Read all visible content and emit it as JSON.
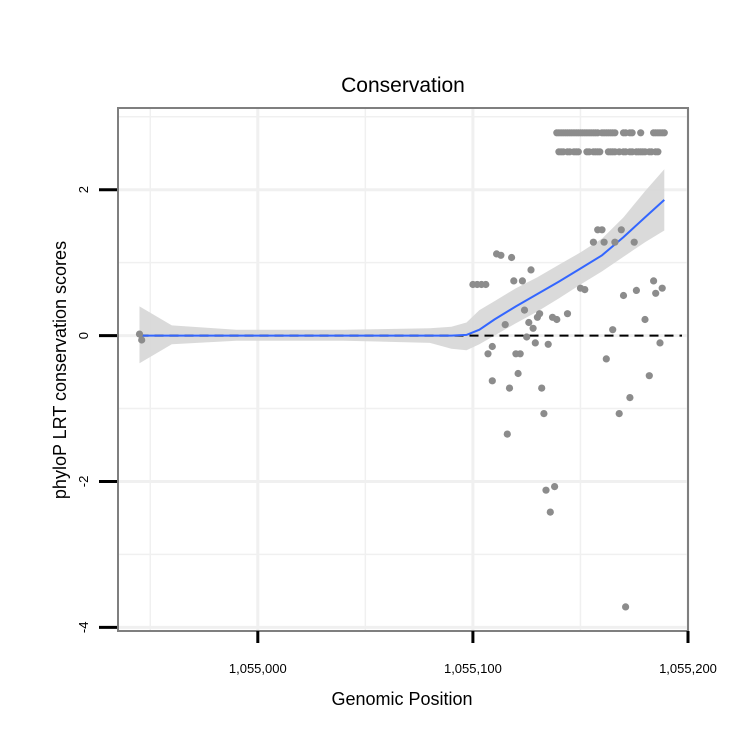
{
  "chart_data": {
    "type": "scatter",
    "title": "Conservation",
    "xlabel": "Genomic Position",
    "ylabel": "phyloP LRT conservation scores",
    "xlim": [
      1054935,
      1055200
    ],
    "ylim": [
      -4.05,
      3.12
    ],
    "x_ticks": [
      1055000,
      1055100,
      1055200
    ],
    "x_tick_labels": [
      "1,055,000",
      "1,055,100",
      "1,055,200"
    ],
    "y_ticks": [
      -4,
      -2,
      0,
      2
    ],
    "y_tick_labels": [
      "-4",
      "-2",
      "0",
      "2"
    ],
    "grid": true,
    "reference_line": {
      "y": 0,
      "style": "dashed",
      "color": "#000000"
    },
    "colors": {
      "points": "#8c8c8c",
      "smooth_line": "#3366ff",
      "confidence_band": "#d6d6d6",
      "panel_border": "#7f7f7f",
      "grid": "#f0f0f0"
    },
    "points": [
      {
        "x": 1054945,
        "y": 0.02
      },
      {
        "x": 1054946,
        "y": -0.06
      },
      {
        "x": 1055100,
        "y": 0.7
      },
      {
        "x": 1055102,
        "y": 0.7
      },
      {
        "x": 1055104,
        "y": 0.7
      },
      {
        "x": 1055106,
        "y": 0.7
      },
      {
        "x": 1055107,
        "y": -0.25
      },
      {
        "x": 1055109,
        "y": -0.15
      },
      {
        "x": 1055109,
        "y": -0.62
      },
      {
        "x": 1055111,
        "y": 1.12
      },
      {
        "x": 1055113,
        "y": 1.1
      },
      {
        "x": 1055115,
        "y": 0.15
      },
      {
        "x": 1055116,
        "y": -1.35
      },
      {
        "x": 1055117,
        "y": -0.72
      },
      {
        "x": 1055118,
        "y": 1.07
      },
      {
        "x": 1055119,
        "y": 0.75
      },
      {
        "x": 1055120,
        "y": -0.25
      },
      {
        "x": 1055121,
        "y": -0.52
      },
      {
        "x": 1055122,
        "y": -0.25
      },
      {
        "x": 1055123,
        "y": 0.75
      },
      {
        "x": 1055124,
        "y": 0.35
      },
      {
        "x": 1055125,
        "y": -0.02
      },
      {
        "x": 1055126,
        "y": 0.18
      },
      {
        "x": 1055127,
        "y": 0.9
      },
      {
        "x": 1055128,
        "y": 0.1
      },
      {
        "x": 1055129,
        "y": -0.1
      },
      {
        "x": 1055130,
        "y": 0.25
      },
      {
        "x": 1055131,
        "y": 0.3
      },
      {
        "x": 1055132,
        "y": -0.72
      },
      {
        "x": 1055133,
        "y": -1.07
      },
      {
        "x": 1055134,
        "y": -2.12
      },
      {
        "x": 1055135,
        "y": -0.12
      },
      {
        "x": 1055136,
        "y": -2.42
      },
      {
        "x": 1055137,
        "y": 0.25
      },
      {
        "x": 1055138,
        "y": -2.07
      },
      {
        "x": 1055139,
        "y": 0.22
      },
      {
        "x": 1055144,
        "y": 0.3
      },
      {
        "x": 1055150,
        "y": 0.65
      },
      {
        "x": 1055152,
        "y": 0.63
      },
      {
        "x": 1055156,
        "y": 1.28
      },
      {
        "x": 1055158,
        "y": 1.45
      },
      {
        "x": 1055160,
        "y": 1.45
      },
      {
        "x": 1055161,
        "y": 1.28
      },
      {
        "x": 1055162,
        "y": -0.32
      },
      {
        "x": 1055165,
        "y": 0.08
      },
      {
        "x": 1055166,
        "y": 1.28
      },
      {
        "x": 1055168,
        "y": -1.07
      },
      {
        "x": 1055169,
        "y": 1.45
      },
      {
        "x": 1055170,
        "y": 0.55
      },
      {
        "x": 1055171,
        "y": -3.72
      },
      {
        "x": 1055173,
        "y": -0.85
      },
      {
        "x": 1055175,
        "y": 1.28
      },
      {
        "x": 1055176,
        "y": 0.62
      },
      {
        "x": 1055180,
        "y": 0.22
      },
      {
        "x": 1055182,
        "y": -0.55
      },
      {
        "x": 1055184,
        "y": 0.75
      },
      {
        "x": 1055185,
        "y": 0.58
      },
      {
        "x": 1055187,
        "y": -0.1
      },
      {
        "x": 1055188,
        "y": 0.65
      },
      {
        "x": 1055139,
        "y": 2.78
      },
      {
        "x": 1055140,
        "y": 2.78
      },
      {
        "x": 1055141,
        "y": 2.78
      },
      {
        "x": 1055142,
        "y": 2.78
      },
      {
        "x": 1055143,
        "y": 2.78
      },
      {
        "x": 1055144,
        "y": 2.78
      },
      {
        "x": 1055145,
        "y": 2.78
      },
      {
        "x": 1055146,
        "y": 2.78
      },
      {
        "x": 1055147,
        "y": 2.78
      },
      {
        "x": 1055148,
        "y": 2.78
      },
      {
        "x": 1055149,
        "y": 2.78
      },
      {
        "x": 1055150,
        "y": 2.78
      },
      {
        "x": 1055151,
        "y": 2.78
      },
      {
        "x": 1055152,
        "y": 2.78
      },
      {
        "x": 1055153,
        "y": 2.78
      },
      {
        "x": 1055154,
        "y": 2.78
      },
      {
        "x": 1055155,
        "y": 2.78
      },
      {
        "x": 1055156,
        "y": 2.78
      },
      {
        "x": 1055157,
        "y": 2.78
      },
      {
        "x": 1055158,
        "y": 2.78
      },
      {
        "x": 1055160,
        "y": 2.78
      },
      {
        "x": 1055161,
        "y": 2.78
      },
      {
        "x": 1055162,
        "y": 2.78
      },
      {
        "x": 1055163,
        "y": 2.78
      },
      {
        "x": 1055164,
        "y": 2.78
      },
      {
        "x": 1055165,
        "y": 2.78
      },
      {
        "x": 1055166,
        "y": 2.78
      },
      {
        "x": 1055170,
        "y": 2.78
      },
      {
        "x": 1055171,
        "y": 2.78
      },
      {
        "x": 1055173,
        "y": 2.78
      },
      {
        "x": 1055174,
        "y": 2.78
      },
      {
        "x": 1055178,
        "y": 2.78
      },
      {
        "x": 1055184,
        "y": 2.78
      },
      {
        "x": 1055185,
        "y": 2.78
      },
      {
        "x": 1055186,
        "y": 2.78
      },
      {
        "x": 1055187,
        "y": 2.78
      },
      {
        "x": 1055188,
        "y": 2.78
      },
      {
        "x": 1055189,
        "y": 2.78
      },
      {
        "x": 1055140,
        "y": 2.52
      },
      {
        "x": 1055141,
        "y": 2.52
      },
      {
        "x": 1055142,
        "y": 2.52
      },
      {
        "x": 1055144,
        "y": 2.52
      },
      {
        "x": 1055145,
        "y": 2.52
      },
      {
        "x": 1055147,
        "y": 2.52
      },
      {
        "x": 1055148,
        "y": 2.52
      },
      {
        "x": 1055149,
        "y": 2.52
      },
      {
        "x": 1055153,
        "y": 2.52
      },
      {
        "x": 1055154,
        "y": 2.52
      },
      {
        "x": 1055156,
        "y": 2.52
      },
      {
        "x": 1055157,
        "y": 2.52
      },
      {
        "x": 1055158,
        "y": 2.52
      },
      {
        "x": 1055159,
        "y": 2.52
      },
      {
        "x": 1055163,
        "y": 2.52
      },
      {
        "x": 1055164,
        "y": 2.52
      },
      {
        "x": 1055165,
        "y": 2.52
      },
      {
        "x": 1055166,
        "y": 2.52
      },
      {
        "x": 1055168,
        "y": 2.52
      },
      {
        "x": 1055170,
        "y": 2.52
      },
      {
        "x": 1055171,
        "y": 2.52
      },
      {
        "x": 1055173,
        "y": 2.52
      },
      {
        "x": 1055174,
        "y": 2.52
      },
      {
        "x": 1055176,
        "y": 2.52
      },
      {
        "x": 1055177,
        "y": 2.52
      },
      {
        "x": 1055178,
        "y": 2.52
      },
      {
        "x": 1055179,
        "y": 2.52
      },
      {
        "x": 1055180,
        "y": 2.52
      },
      {
        "x": 1055182,
        "y": 2.52
      },
      {
        "x": 1055183,
        "y": 2.52
      },
      {
        "x": 1055185,
        "y": 2.52
      },
      {
        "x": 1055186,
        "y": 2.52
      }
    ],
    "smooth": [
      {
        "x": 1054945,
        "y": 0.0,
        "lo": -0.38,
        "hi": 0.4
      },
      {
        "x": 1054960,
        "y": 0.0,
        "lo": -0.12,
        "hi": 0.14
      },
      {
        "x": 1054990,
        "y": 0.0,
        "lo": -0.07,
        "hi": 0.08
      },
      {
        "x": 1055040,
        "y": 0.0,
        "lo": -0.07,
        "hi": 0.08
      },
      {
        "x": 1055080,
        "y": 0.0,
        "lo": -0.1,
        "hi": 0.1
      },
      {
        "x": 1055090,
        "y": 0.0,
        "lo": -0.18,
        "hi": 0.12
      },
      {
        "x": 1055097,
        "y": 0.01,
        "lo": -0.2,
        "hi": 0.18
      },
      {
        "x": 1055103,
        "y": 0.08,
        "lo": -0.12,
        "hi": 0.35
      },
      {
        "x": 1055110,
        "y": 0.22,
        "lo": 0.0,
        "hi": 0.47
      },
      {
        "x": 1055120,
        "y": 0.4,
        "lo": 0.17,
        "hi": 0.65
      },
      {
        "x": 1055130,
        "y": 0.57,
        "lo": 0.33,
        "hi": 0.8
      },
      {
        "x": 1055140,
        "y": 0.74,
        "lo": 0.51,
        "hi": 0.97
      },
      {
        "x": 1055150,
        "y": 0.92,
        "lo": 0.7,
        "hi": 1.14
      },
      {
        "x": 1055160,
        "y": 1.1,
        "lo": 0.88,
        "hi": 1.33
      },
      {
        "x": 1055170,
        "y": 1.35,
        "lo": 1.08,
        "hi": 1.62
      },
      {
        "x": 1055180,
        "y": 1.62,
        "lo": 1.28,
        "hi": 1.98
      },
      {
        "x": 1055189,
        "y": 1.86,
        "lo": 1.44,
        "hi": 2.28
      }
    ]
  }
}
